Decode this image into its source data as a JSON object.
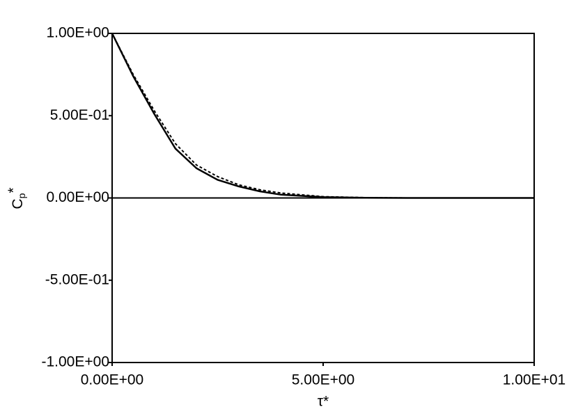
{
  "chart_data": {
    "type": "line",
    "x_label": "τ*",
    "y_label": [
      "C",
      "p",
      "*"
    ],
    "x": [
      0,
      0.5,
      1,
      1.5,
      2,
      2.5,
      3,
      3.5,
      4,
      5,
      6,
      7,
      8,
      9,
      10
    ],
    "series": [
      {
        "color": "#000000",
        "dash": "solid",
        "values": [
          1.0,
          0.74,
          0.51,
          0.3,
          0.18,
          0.11,
          0.07,
          0.04,
          0.02,
          0.005,
          0.001,
          0,
          0,
          0,
          0
        ]
      },
      {
        "color": "#000000",
        "dash": "dashed",
        "values": [
          1.0,
          0.75,
          0.53,
          0.33,
          0.2,
          0.13,
          0.08,
          0.05,
          0.03,
          0.008,
          0.002,
          0,
          0,
          0,
          0
        ]
      }
    ],
    "xlim": [
      0,
      10
    ],
    "ylim": [
      -1,
      1
    ],
    "xticks": [
      {
        "value": 0,
        "label": "0.00E+00"
      },
      {
        "value": 5,
        "label": "5.00E+00"
      },
      {
        "value": 10,
        "label": "1.00E+01"
      }
    ],
    "yticks": [
      {
        "value": -1,
        "label": "-1.00E+00"
      },
      {
        "value": -0.5,
        "label": "-5.00E-01"
      },
      {
        "value": 0,
        "label": "0.00E+00"
      },
      {
        "value": 0.5,
        "label": "5.00E-01"
      },
      {
        "value": 1,
        "label": "1.00E+00"
      }
    ],
    "grid": false
  }
}
